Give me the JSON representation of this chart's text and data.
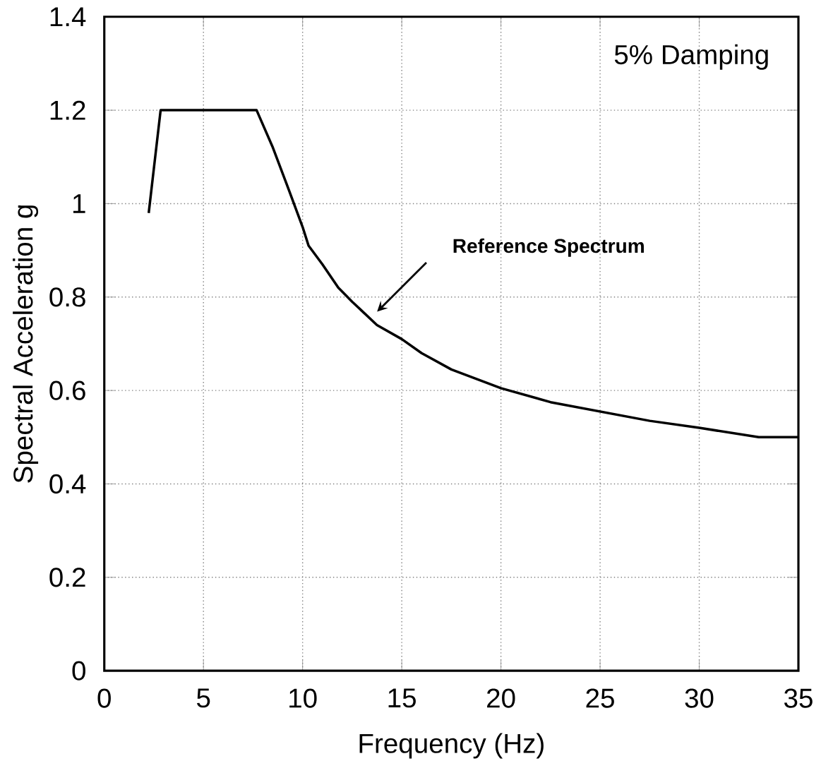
{
  "chart_data": {
    "type": "line",
    "xlabel": "Frequency (Hz)",
    "ylabel": "Spectral Acceleration g",
    "series": [
      {
        "color": "#000000",
        "x": [
          2.24,
          2.84,
          7.68,
          8.5,
          9.3,
          10,
          10.3,
          11,
          11.8,
          12.5,
          13.75,
          15,
          16,
          17.5,
          20,
          22.5,
          25,
          27.5,
          30,
          33,
          35
        ],
        "values": [
          0.98,
          1.2,
          1.2,
          1.12,
          1.03,
          0.95,
          0.91,
          0.87,
          0.82,
          0.79,
          0.74,
          0.71,
          0.68,
          0.645,
          0.605,
          0.575,
          0.555,
          0.535,
          0.52,
          0.5,
          0.5
        ]
      }
    ],
    "xlim": [
      0,
      35
    ],
    "xticks": [
      0,
      5,
      10,
      15,
      20,
      25,
      30,
      35
    ],
    "ylim": [
      0,
      1.4
    ],
    "yticks": [
      0,
      {
        "value": 0.2,
        "label": "0.2"
      },
      {
        "value": 0.4,
        "label": "0.4"
      },
      {
        "value": 0.6,
        "label": "0.6"
      },
      {
        "value": 0.8,
        "label": "0.8"
      },
      1,
      {
        "value": 1.2,
        "label": "1.2"
      },
      {
        "value": 1.4,
        "label": "1.4"
      }
    ],
    "grid": true,
    "line_style": "solid",
    "marker": "none",
    "annotations": [
      "5% Damping",
      "Reference Spectrum"
    ]
  }
}
